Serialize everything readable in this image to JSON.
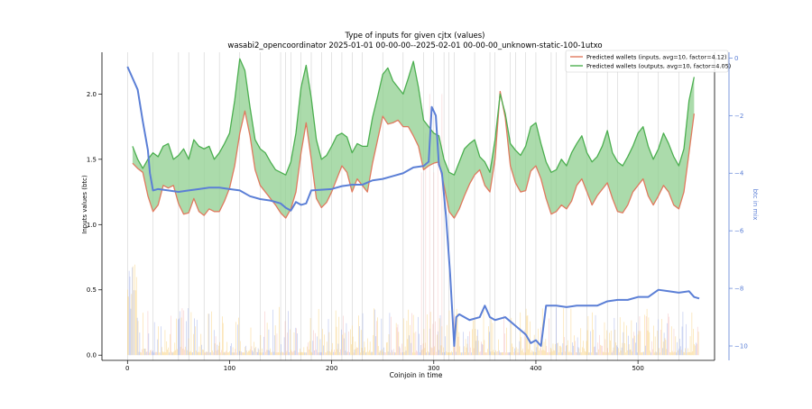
{
  "chart_data": {
    "type": "line",
    "title": "Type of inputs for given cjtx (values)",
    "subtitle": "wasabi2_opencoordinator 2025-01-01 00-00-00--2025-02-01 00-00-00_unknown-static-100-1utxo",
    "xlabel": "Coinjoin in time",
    "ylabel": "Inputs values (btc)",
    "y2label": "btc in mix",
    "xlim": [
      -25,
      575
    ],
    "ylim": [
      -0.04,
      2.32
    ],
    "y2lim": [
      -10.5,
      0.2
    ],
    "x_ticks": [
      0,
      100,
      200,
      300,
      400,
      500
    ],
    "y_ticks": [
      0.0,
      0.5,
      1.0,
      1.5,
      2.0
    ],
    "y2_ticks": [
      0,
      -2,
      -4,
      -6,
      -8,
      -10
    ],
    "y2_tick_labels": [
      "0",
      "−2",
      "−4",
      "−6",
      "−8",
      "−10"
    ],
    "legend_position": "top-right",
    "grid": false,
    "colors": {
      "inputs": "#e07a5f",
      "outputs": "#4caf50",
      "fill": "#8fcf8f",
      "btc_in_mix": "#5b7fd6",
      "bars_a": "#f5c04a",
      "bars_b": "#7a8fe0",
      "bars_c": "#f0a0a0",
      "vlines": "#c8c8c8"
    },
    "series": [
      {
        "name": "Predicted wallets (inputs, avg=10, factor=4.12)",
        "color": "#e07a5f",
        "axis": "left",
        "points": [
          [
            5,
            1.47
          ],
          [
            10,
            1.43
          ],
          [
            15,
            1.4
          ],
          [
            20,
            1.22
          ],
          [
            25,
            1.1
          ],
          [
            30,
            1.15
          ],
          [
            35,
            1.3
          ],
          [
            40,
            1.28
          ],
          [
            45,
            1.3
          ],
          [
            50,
            1.16
          ],
          [
            55,
            1.08
          ],
          [
            60,
            1.09
          ],
          [
            65,
            1.2
          ],
          [
            70,
            1.1
          ],
          [
            75,
            1.07
          ],
          [
            80,
            1.12
          ],
          [
            85,
            1.1
          ],
          [
            90,
            1.1
          ],
          [
            95,
            1.18
          ],
          [
            100,
            1.28
          ],
          [
            105,
            1.45
          ],
          [
            110,
            1.7
          ],
          [
            115,
            1.87
          ],
          [
            120,
            1.68
          ],
          [
            125,
            1.42
          ],
          [
            130,
            1.3
          ],
          [
            135,
            1.25
          ],
          [
            140,
            1.2
          ],
          [
            145,
            1.15
          ],
          [
            150,
            1.09
          ],
          [
            155,
            1.05
          ],
          [
            160,
            1.12
          ],
          [
            165,
            1.25
          ],
          [
            170,
            1.55
          ],
          [
            175,
            1.78
          ],
          [
            180,
            1.5
          ],
          [
            185,
            1.2
          ],
          [
            190,
            1.13
          ],
          [
            195,
            1.17
          ],
          [
            200,
            1.25
          ],
          [
            205,
            1.35
          ],
          [
            210,
            1.45
          ],
          [
            215,
            1.4
          ],
          [
            220,
            1.25
          ],
          [
            225,
            1.35
          ],
          [
            230,
            1.3
          ],
          [
            235,
            1.25
          ],
          [
            240,
            1.47
          ],
          [
            245,
            1.65
          ],
          [
            250,
            1.83
          ],
          [
            255,
            1.77
          ],
          [
            260,
            1.78
          ],
          [
            265,
            1.8
          ],
          [
            270,
            1.75
          ],
          [
            275,
            1.75
          ],
          [
            280,
            1.68
          ],
          [
            285,
            1.6
          ],
          [
            290,
            1.42
          ],
          [
            295,
            1.45
          ],
          [
            300,
            1.47
          ],
          [
            305,
            1.48
          ],
          [
            310,
            1.3
          ],
          [
            315,
            1.1
          ],
          [
            320,
            1.05
          ],
          [
            325,
            1.12
          ],
          [
            330,
            1.22
          ],
          [
            335,
            1.31
          ],
          [
            340,
            1.38
          ],
          [
            345,
            1.42
          ],
          [
            350,
            1.3
          ],
          [
            355,
            1.25
          ],
          [
            360,
            1.5
          ],
          [
            365,
            2.02
          ],
          [
            370,
            1.82
          ],
          [
            375,
            1.45
          ],
          [
            380,
            1.32
          ],
          [
            385,
            1.25
          ],
          [
            390,
            1.26
          ],
          [
            395,
            1.41
          ],
          [
            400,
            1.45
          ],
          [
            405,
            1.35
          ],
          [
            410,
            1.2
          ],
          [
            415,
            1.08
          ],
          [
            420,
            1.1
          ],
          [
            425,
            1.15
          ],
          [
            430,
            1.12
          ],
          [
            435,
            1.18
          ],
          [
            440,
            1.3
          ],
          [
            445,
            1.35
          ],
          [
            450,
            1.25
          ],
          [
            455,
            1.15
          ],
          [
            460,
            1.22
          ],
          [
            465,
            1.27
          ],
          [
            470,
            1.32
          ],
          [
            475,
            1.2
          ],
          [
            480,
            1.1
          ],
          [
            485,
            1.09
          ],
          [
            490,
            1.15
          ],
          [
            495,
            1.25
          ],
          [
            500,
            1.3
          ],
          [
            505,
            1.35
          ],
          [
            510,
            1.22
          ],
          [
            515,
            1.15
          ],
          [
            520,
            1.22
          ],
          [
            525,
            1.3
          ],
          [
            530,
            1.25
          ],
          [
            535,
            1.15
          ],
          [
            540,
            1.12
          ],
          [
            545,
            1.25
          ],
          [
            550,
            1.55
          ],
          [
            555,
            1.85
          ]
        ]
      },
      {
        "name": "Predicted wallets (outputs, avg=10, factor=4.05)",
        "color": "#4caf50",
        "axis": "left",
        "points": [
          [
            5,
            1.6
          ],
          [
            10,
            1.5
          ],
          [
            15,
            1.43
          ],
          [
            20,
            1.5
          ],
          [
            25,
            1.55
          ],
          [
            30,
            1.52
          ],
          [
            35,
            1.6
          ],
          [
            40,
            1.62
          ],
          [
            45,
            1.5
          ],
          [
            50,
            1.53
          ],
          [
            55,
            1.58
          ],
          [
            60,
            1.5
          ],
          [
            65,
            1.65
          ],
          [
            70,
            1.6
          ],
          [
            75,
            1.58
          ],
          [
            80,
            1.6
          ],
          [
            85,
            1.5
          ],
          [
            90,
            1.55
          ],
          [
            95,
            1.62
          ],
          [
            100,
            1.7
          ],
          [
            105,
            1.95
          ],
          [
            110,
            2.27
          ],
          [
            115,
            2.18
          ],
          [
            120,
            1.9
          ],
          [
            125,
            1.65
          ],
          [
            130,
            1.58
          ],
          [
            135,
            1.55
          ],
          [
            140,
            1.48
          ],
          [
            145,
            1.42
          ],
          [
            150,
            1.4
          ],
          [
            155,
            1.38
          ],
          [
            160,
            1.48
          ],
          [
            165,
            1.7
          ],
          [
            170,
            2.05
          ],
          [
            175,
            2.22
          ],
          [
            180,
            1.97
          ],
          [
            185,
            1.65
          ],
          [
            190,
            1.5
          ],
          [
            195,
            1.53
          ],
          [
            200,
            1.6
          ],
          [
            205,
            1.68
          ],
          [
            210,
            1.7
          ],
          [
            215,
            1.67
          ],
          [
            220,
            1.55
          ],
          [
            225,
            1.62
          ],
          [
            230,
            1.6
          ],
          [
            235,
            1.6
          ],
          [
            240,
            1.82
          ],
          [
            245,
            1.98
          ],
          [
            250,
            2.15
          ],
          [
            255,
            2.2
          ],
          [
            260,
            2.1
          ],
          [
            265,
            2.05
          ],
          [
            270,
            2.0
          ],
          [
            275,
            2.12
          ],
          [
            280,
            2.25
          ],
          [
            285,
            2.05
          ],
          [
            290,
            1.8
          ],
          [
            295,
            1.75
          ],
          [
            300,
            1.7
          ],
          [
            305,
            1.68
          ],
          [
            310,
            1.5
          ],
          [
            315,
            1.4
          ],
          [
            320,
            1.38
          ],
          [
            325,
            1.48
          ],
          [
            330,
            1.58
          ],
          [
            335,
            1.62
          ],
          [
            340,
            1.65
          ],
          [
            345,
            1.52
          ],
          [
            350,
            1.48
          ],
          [
            355,
            1.4
          ],
          [
            360,
            1.65
          ],
          [
            365,
            2.0
          ],
          [
            370,
            1.85
          ],
          [
            375,
            1.62
          ],
          [
            380,
            1.57
          ],
          [
            385,
            1.53
          ],
          [
            390,
            1.6
          ],
          [
            395,
            1.75
          ],
          [
            400,
            1.78
          ],
          [
            405,
            1.62
          ],
          [
            410,
            1.48
          ],
          [
            415,
            1.4
          ],
          [
            420,
            1.42
          ],
          [
            425,
            1.5
          ],
          [
            430,
            1.45
          ],
          [
            435,
            1.55
          ],
          [
            440,
            1.62
          ],
          [
            445,
            1.68
          ],
          [
            450,
            1.55
          ],
          [
            455,
            1.48
          ],
          [
            460,
            1.52
          ],
          [
            465,
            1.6
          ],
          [
            470,
            1.72
          ],
          [
            475,
            1.55
          ],
          [
            480,
            1.48
          ],
          [
            485,
            1.45
          ],
          [
            490,
            1.52
          ],
          [
            495,
            1.6
          ],
          [
            500,
            1.7
          ],
          [
            505,
            1.75
          ],
          [
            510,
            1.6
          ],
          [
            515,
            1.5
          ],
          [
            520,
            1.58
          ],
          [
            525,
            1.7
          ],
          [
            530,
            1.62
          ],
          [
            535,
            1.52
          ],
          [
            540,
            1.45
          ],
          [
            545,
            1.58
          ],
          [
            550,
            1.95
          ],
          [
            555,
            2.13
          ]
        ]
      },
      {
        "name": "btc in mix",
        "color": "#5b7fd6",
        "axis": "right",
        "points": [
          [
            0,
            -0.3
          ],
          [
            5,
            -0.7
          ],
          [
            10,
            -1.1
          ],
          [
            15,
            -2.2
          ],
          [
            20,
            -3.2
          ],
          [
            22,
            -4.0
          ],
          [
            25,
            -4.6
          ],
          [
            30,
            -4.55
          ],
          [
            40,
            -4.6
          ],
          [
            50,
            -4.65
          ],
          [
            60,
            -4.6
          ],
          [
            70,
            -4.55
          ],
          [
            80,
            -4.5
          ],
          [
            90,
            -4.5
          ],
          [
            100,
            -4.55
          ],
          [
            110,
            -4.6
          ],
          [
            120,
            -4.8
          ],
          [
            130,
            -4.9
          ],
          [
            140,
            -4.95
          ],
          [
            150,
            -5.05
          ],
          [
            155,
            -5.2
          ],
          [
            160,
            -5.3
          ],
          [
            165,
            -5.0
          ],
          [
            170,
            -5.1
          ],
          [
            175,
            -5.05
          ],
          [
            180,
            -4.6
          ],
          [
            200,
            -4.55
          ],
          [
            210,
            -4.45
          ],
          [
            220,
            -4.4
          ],
          [
            230,
            -4.4
          ],
          [
            240,
            -4.25
          ],
          [
            250,
            -4.2
          ],
          [
            260,
            -4.1
          ],
          [
            270,
            -4.0
          ],
          [
            280,
            -3.8
          ],
          [
            290,
            -3.75
          ],
          [
            295,
            -3.6
          ],
          [
            298,
            -1.7
          ],
          [
            302,
            -2.0
          ],
          [
            305,
            -3.7
          ],
          [
            308,
            -4.0
          ],
          [
            312,
            -5.5
          ],
          [
            316,
            -7.5
          ],
          [
            320,
            -10.0
          ],
          [
            322,
            -9.0
          ],
          [
            325,
            -8.9
          ],
          [
            335,
            -9.1
          ],
          [
            345,
            -9.0
          ],
          [
            350,
            -8.6
          ],
          [
            355,
            -9.0
          ],
          [
            360,
            -9.1
          ],
          [
            370,
            -9.0
          ],
          [
            380,
            -9.3
          ],
          [
            390,
            -9.6
          ],
          [
            395,
            -9.9
          ],
          [
            400,
            -9.8
          ],
          [
            405,
            -10.0
          ],
          [
            410,
            -8.6
          ],
          [
            420,
            -8.6
          ],
          [
            430,
            -8.65
          ],
          [
            440,
            -8.6
          ],
          [
            460,
            -8.6
          ],
          [
            470,
            -8.45
          ],
          [
            480,
            -8.4
          ],
          [
            490,
            -8.4
          ],
          [
            500,
            -8.3
          ],
          [
            510,
            -8.3
          ],
          [
            520,
            -8.05
          ],
          [
            530,
            -8.1
          ],
          [
            540,
            -8.15
          ],
          [
            550,
            -8.1
          ],
          [
            555,
            -8.3
          ],
          [
            560,
            -8.35
          ]
        ]
      }
    ],
    "bars_note_hidden": true,
    "vertical_line_positions": [
      0,
      25,
      50,
      60,
      75,
      90,
      110,
      130,
      150,
      155,
      160,
      170,
      180,
      190,
      200,
      210,
      220,
      230,
      250,
      270,
      290,
      300,
      310,
      315,
      320,
      340,
      355,
      360,
      375,
      380,
      390,
      400,
      415,
      420,
      430,
      450,
      470,
      480,
      500,
      520,
      540
    ]
  }
}
